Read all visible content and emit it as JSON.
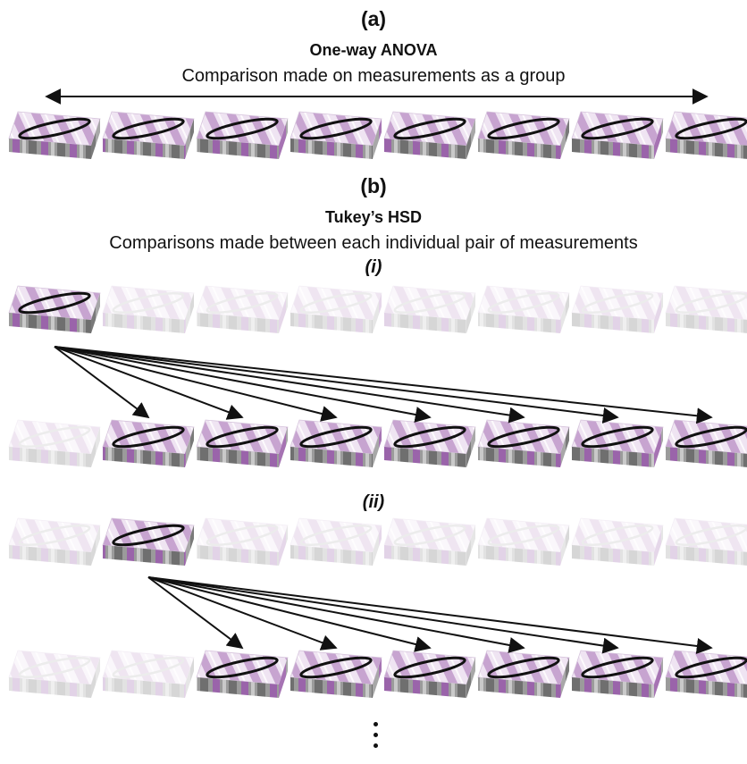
{
  "panel_a": {
    "label": "(a)",
    "title": "One-way ANOVA",
    "description": "Comparison made on measurements as a group"
  },
  "panel_b": {
    "label": "(b)",
    "title": "Tukey’s HSD",
    "description": "Comparisons made between each individual pair of measurements",
    "subpanels": [
      {
        "label": "(i)",
        "source_index": 0,
        "compared_indices": [
          1,
          2,
          3,
          4,
          5,
          6,
          7
        ]
      },
      {
        "label": "(ii)",
        "source_index": 1,
        "compared_indices": [
          2,
          3,
          4,
          5,
          6,
          7
        ]
      }
    ]
  },
  "measurement_count": 8,
  "colors": {
    "stripe_purple": "#b98fc4",
    "side_gray": "#8c8c8c",
    "side_purple": "#9a64aa",
    "ellipse": "#111111",
    "faded_ellipse": "#bdbdbd",
    "arrow": "#111111"
  }
}
